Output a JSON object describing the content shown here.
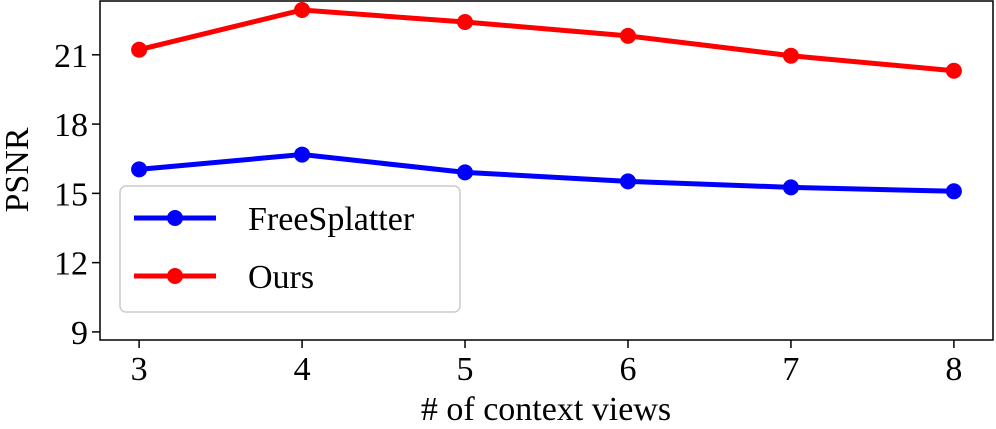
{
  "chart_data": {
    "type": "line",
    "xlabel": "# of context views",
    "ylabel": "PSNR",
    "x": [
      3,
      4,
      5,
      6,
      7,
      8
    ],
    "series": [
      {
        "name": "FreeSplatter",
        "color": "#0000ff",
        "values": [
          16.04,
          16.68,
          15.91,
          15.52,
          15.26,
          15.09
        ]
      },
      {
        "name": "Ours",
        "color": "#ff0000",
        "values": [
          21.22,
          22.94,
          22.42,
          21.82,
          20.96,
          20.31
        ]
      }
    ],
    "xlim": [
      2.76,
      8.24
    ],
    "xticks": [
      3,
      4,
      5,
      6,
      7,
      8
    ],
    "ylim": [
      8.65,
      23.33
    ],
    "yticks": [
      9,
      12,
      15,
      18,
      21
    ],
    "legend": "lower left"
  }
}
